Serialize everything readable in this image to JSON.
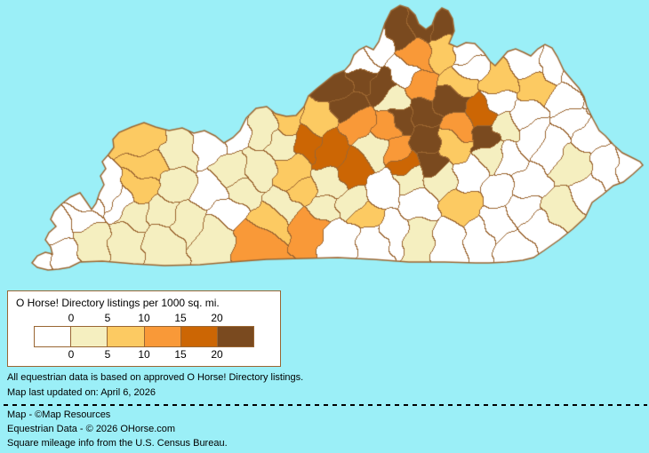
{
  "legend": {
    "title": "O Horse! Directory listings per 1000 sq. mi.",
    "tick_labels": [
      "0",
      "5",
      "10",
      "15",
      "20"
    ],
    "bucket_colors": [
      "#FFFFFF",
      "#F5EFC0",
      "#FCCA62",
      "#F99938",
      "#CC6604",
      "#7A4A1F"
    ],
    "bucket_ranges": [
      "0",
      "0-5",
      "5-10",
      "10-15",
      "15-20",
      "20+"
    ],
    "border_color": "#996633"
  },
  "notes": [
    "All equestrian data is based on approved O Horse! Directory listings.",
    "Map last updated on: April 6, 2026"
  ],
  "credits": [
    "Map - ©Map Resources",
    "Equestrian Data - © 2026 OHorse.com",
    "Square mileage info from the U.S. Census Bureau."
  ],
  "map": {
    "region": "Kentucky counties",
    "background": "#9BEFF7",
    "county_line_color": "#9C6631",
    "state_border_color": "#9C6631",
    "outline": [
      [
        148,
        143
      ],
      [
        162,
        138
      ],
      [
        175,
        143
      ],
      [
        190,
        147
      ],
      [
        205,
        144
      ],
      [
        218,
        150
      ],
      [
        230,
        147
      ],
      [
        242,
        153
      ],
      [
        252,
        161
      ],
      [
        262,
        155
      ],
      [
        270,
        147
      ],
      [
        277,
        133
      ],
      [
        288,
        122
      ],
      [
        300,
        120
      ],
      [
        310,
        128
      ],
      [
        322,
        131
      ],
      [
        333,
        130
      ],
      [
        342,
        120
      ],
      [
        347,
        108
      ],
      [
        356,
        100
      ],
      [
        366,
        92
      ],
      [
        376,
        84
      ],
      [
        388,
        79
      ],
      [
        394,
        72
      ],
      [
        398,
        62
      ],
      [
        404,
        56
      ],
      [
        412,
        52
      ],
      [
        420,
        56
      ],
      [
        426,
        47
      ],
      [
        433,
        26
      ],
      [
        440,
        12
      ],
      [
        450,
        6
      ],
      [
        459,
        9
      ],
      [
        467,
        17
      ],
      [
        471,
        27
      ],
      [
        479,
        33
      ],
      [
        486,
        28
      ],
      [
        491,
        15
      ],
      [
        497,
        9
      ],
      [
        504,
        12
      ],
      [
        509,
        21
      ],
      [
        511,
        35
      ],
      [
        505,
        49
      ],
      [
        514,
        53
      ],
      [
        524,
        48
      ],
      [
        534,
        49
      ],
      [
        544,
        59
      ],
      [
        551,
        69
      ],
      [
        557,
        74
      ],
      [
        564,
        66
      ],
      [
        571,
        58
      ],
      [
        580,
        55
      ],
      [
        589,
        59
      ],
      [
        597,
        63
      ],
      [
        605,
        55
      ],
      [
        613,
        50
      ],
      [
        621,
        54
      ],
      [
        627,
        64
      ],
      [
        634,
        79
      ],
      [
        644,
        91
      ],
      [
        651,
        99
      ],
      [
        657,
        109
      ],
      [
        660,
        120
      ],
      [
        667,
        134
      ],
      [
        674,
        147
      ],
      [
        681,
        153
      ],
      [
        690,
        163
      ],
      [
        700,
        172
      ],
      [
        712,
        178
      ],
      [
        720,
        182
      ],
      [
        723,
        186
      ],
      [
        712,
        196
      ],
      [
        701,
        205
      ],
      [
        690,
        209
      ],
      [
        678,
        219
      ],
      [
        666,
        228
      ],
      [
        658,
        245
      ],
      [
        644,
        258
      ],
      [
        629,
        270
      ],
      [
        612,
        282
      ],
      [
        600,
        290
      ],
      [
        588,
        293
      ],
      [
        570,
        295
      ],
      [
        550,
        296
      ],
      [
        535,
        296
      ],
      [
        500,
        295
      ],
      [
        460,
        295
      ],
      [
        420,
        292
      ],
      [
        380,
        290
      ],
      [
        340,
        291
      ],
      [
        300,
        292
      ],
      [
        260,
        295
      ],
      [
        225,
        298
      ],
      [
        185,
        299
      ],
      [
        150,
        297
      ],
      [
        115,
        294
      ],
      [
        90,
        295
      ],
      [
        78,
        301
      ],
      [
        66,
        303
      ],
      [
        54,
        304
      ],
      [
        42,
        301
      ],
      [
        36,
        296
      ],
      [
        42,
        288
      ],
      [
        51,
        284
      ],
      [
        59,
        286
      ],
      [
        57,
        278
      ],
      [
        51,
        270
      ],
      [
        55,
        262
      ],
      [
        63,
        255
      ],
      [
        57,
        247
      ],
      [
        61,
        238
      ],
      [
        69,
        230
      ],
      [
        79,
        222
      ],
      [
        90,
        217
      ],
      [
        97,
        227
      ],
      [
        103,
        236
      ],
      [
        108,
        229
      ],
      [
        112,
        217
      ],
      [
        117,
        208
      ],
      [
        113,
        198
      ],
      [
        119,
        190
      ],
      [
        115,
        182
      ],
      [
        122,
        174
      ],
      [
        128,
        166
      ],
      [
        127,
        157
      ],
      [
        134,
        149
      ]
    ],
    "counties": [
      [
        48,
        295,
        0
      ],
      [
        68,
        288,
        0
      ],
      [
        63,
        260,
        0
      ],
      [
        95,
        245,
        0
      ],
      [
        100,
        232,
        0
      ],
      [
        123,
        220,
        0
      ],
      [
        135,
        228,
        0
      ],
      [
        105,
        272,
        1
      ],
      [
        140,
        273,
        1
      ],
      [
        152,
        242,
        1
      ],
      [
        180,
        240,
        1
      ],
      [
        182,
        272,
        1
      ],
      [
        160,
        210,
        2
      ],
      [
        165,
        158,
        2
      ],
      [
        168,
        186,
        2
      ],
      [
        200,
        170,
        1
      ],
      [
        196,
        205,
        1
      ],
      [
        212,
        252,
        1
      ],
      [
        238,
        266,
        1
      ],
      [
        240,
        215,
        0
      ],
      [
        256,
        235,
        0
      ],
      [
        236,
        160,
        0
      ],
      [
        264,
        150,
        0
      ],
      [
        262,
        192,
        1
      ],
      [
        270,
        215,
        1
      ],
      [
        292,
        188,
        1
      ],
      [
        298,
        148,
        1
      ],
      [
        318,
        162,
        1
      ],
      [
        320,
        232,
        1
      ],
      [
        325,
        140,
        2
      ],
      [
        328,
        192,
        2
      ],
      [
        340,
        215,
        2
      ],
      [
        305,
        248,
        2
      ],
      [
        290,
        273,
        3
      ],
      [
        348,
        252,
        3
      ],
      [
        360,
        235,
        1
      ],
      [
        370,
        205,
        1
      ],
      [
        398,
        230,
        1
      ],
      [
        385,
        268,
        0
      ],
      [
        420,
        272,
        0
      ],
      [
        432,
        212,
        0
      ],
      [
        470,
        228,
        0
      ],
      [
        443,
        262,
        0
      ],
      [
        410,
        243,
        2
      ],
      [
        470,
        268,
        1
      ],
      [
        345,
        158,
        4
      ],
      [
        372,
        170,
        4
      ],
      [
        395,
        188,
        4
      ],
      [
        355,
        140,
        2
      ],
      [
        405,
        140,
        3
      ],
      [
        435,
        147,
        3
      ],
      [
        422,
        165,
        1
      ],
      [
        448,
        168,
        3
      ],
      [
        456,
        183,
        4
      ],
      [
        382,
        97,
        5
      ],
      [
        408,
        88,
        5
      ],
      [
        394,
        120,
        5
      ],
      [
        428,
        95,
        5
      ],
      [
        446,
        111,
        1
      ],
      [
        455,
        80,
        0
      ],
      [
        425,
        52,
        0
      ],
      [
        408,
        68,
        0
      ],
      [
        450,
        35,
        5
      ],
      [
        474,
        28,
        5
      ],
      [
        497,
        26,
        5
      ],
      [
        468,
        62,
        3
      ],
      [
        472,
        95,
        3
      ],
      [
        500,
        58,
        2
      ],
      [
        522,
        62,
        0
      ],
      [
        472,
        130,
        5
      ],
      [
        455,
        135,
        5
      ],
      [
        505,
        112,
        5
      ],
      [
        478,
        160,
        5
      ],
      [
        484,
        183,
        5
      ],
      [
        548,
        155,
        5
      ],
      [
        515,
        90,
        2
      ],
      [
        525,
        72,
        0
      ],
      [
        540,
        132,
        4
      ],
      [
        518,
        146,
        3
      ],
      [
        510,
        163,
        2
      ],
      [
        555,
        172,
        1
      ],
      [
        568,
        145,
        1
      ],
      [
        565,
        115,
        0
      ],
      [
        588,
        130,
        0
      ],
      [
        565,
        92,
        2
      ],
      [
        600,
        98,
        2
      ],
      [
        592,
        68,
        0
      ],
      [
        625,
        70,
        0
      ],
      [
        650,
        85,
        0
      ],
      [
        640,
        112,
        0
      ],
      [
        668,
        105,
        0
      ],
      [
        680,
        130,
        0
      ],
      [
        648,
        138,
        0
      ],
      [
        705,
        190,
        0
      ],
      [
        600,
        155,
        0
      ],
      [
        572,
        178,
        0
      ],
      [
        592,
        205,
        0
      ],
      [
        618,
        165,
        0
      ],
      [
        660,
        150,
        0
      ],
      [
        684,
        190,
        0
      ],
      [
        662,
        215,
        0
      ],
      [
        645,
        185,
        1
      ],
      [
        632,
        235,
        1
      ],
      [
        558,
        255,
        0
      ],
      [
        605,
        258,
        0
      ],
      [
        578,
        282,
        0
      ],
      [
        530,
        195,
        0
      ],
      [
        495,
        200,
        1
      ],
      [
        462,
        198,
        1
      ],
      [
        505,
        272,
        0
      ],
      [
        540,
        268,
        0
      ],
      [
        588,
        235,
        0
      ],
      [
        562,
        212,
        0
      ],
      [
        520,
        232,
        2
      ]
    ]
  }
}
